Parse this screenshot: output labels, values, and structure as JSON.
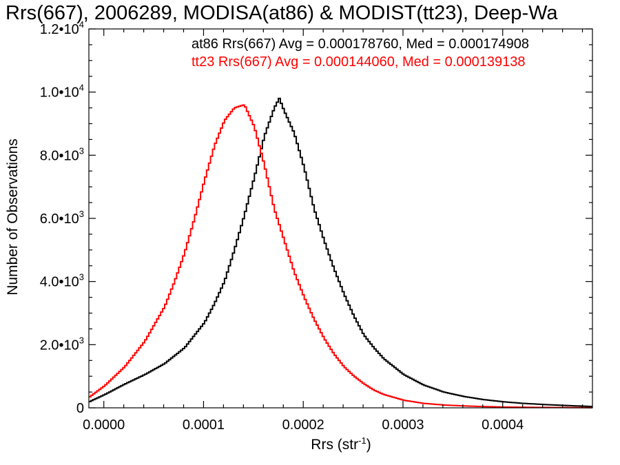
{
  "chart_data": {
    "type": "line",
    "title": "Rrs(667), 2006289, MODISA(at86) & MODIST(tt23), Deep-Wa",
    "xlabel": "Rrs (str",
    "xlabel_sup": "-1",
    "xlabel_end": ")",
    "ylabel": "Number of Observations",
    "xlim": [
      -1.5e-05,
      0.00049
    ],
    "ylim": [
      0,
      12000
    ],
    "x_ticks": [
      {
        "value": 0.0,
        "label": "0.0000"
      },
      {
        "value": 0.0001,
        "label": "0.0001"
      },
      {
        "value": 0.0002,
        "label": "0.0002"
      },
      {
        "value": 0.0003,
        "label": "0.0003"
      },
      {
        "value": 0.0004,
        "label": "0.0004"
      }
    ],
    "y_ticks": [
      {
        "value": 0,
        "mant": "0",
        "exp": ""
      },
      {
        "value": 2000,
        "mant": "2.0•10",
        "exp": "3"
      },
      {
        "value": 4000,
        "mant": "4.0•10",
        "exp": "3"
      },
      {
        "value": 6000,
        "mant": "6.0•10",
        "exp": "3"
      },
      {
        "value": 8000,
        "mant": "8.0•10",
        "exp": "3"
      },
      {
        "value": 10000,
        "mant": "1.0•10",
        "exp": "4"
      },
      {
        "value": 12000,
        "mant": "1.2•10",
        "exp": "4"
      }
    ],
    "annotations": [
      {
        "text": "at86 Rrs(667) Avg = 0.000178760, Med = 0.000174908",
        "color": "#000000"
      },
      {
        "text": "tt23 Rrs(667) Avg = 0.000144060, Med = 0.000139138",
        "color": "#ff0000"
      }
    ],
    "series": [
      {
        "color": "#000000",
        "x": [
          -1.5e-05,
          0.0,
          2e-05,
          4e-05,
          6e-05,
          8e-05,
          0.0001,
          0.00011,
          0.00012,
          0.00013,
          0.00014,
          0.00015,
          0.00016,
          0.00017,
          0.000175,
          0.00018,
          0.00019,
          0.0002,
          0.00021,
          0.00022,
          0.00023,
          0.00024,
          0.00025,
          0.00026,
          0.00027,
          0.00028,
          0.0003,
          0.00032,
          0.00034,
          0.00036,
          0.00038,
          0.0004,
          0.00042,
          0.00045,
          0.00049
        ],
        "y": [
          200,
          420,
          750,
          1050,
          1400,
          1900,
          2700,
          3300,
          4000,
          5000,
          6100,
          7300,
          8600,
          9500,
          9800,
          9400,
          8700,
          7600,
          6300,
          5300,
          4400,
          3600,
          2900,
          2300,
          1900,
          1550,
          1050,
          720,
          500,
          360,
          260,
          190,
          140,
          90,
          40
        ]
      },
      {
        "color": "#ff0000",
        "x": [
          -1.5e-05,
          0.0,
          2e-05,
          4e-05,
          6e-05,
          7e-05,
          8e-05,
          9e-05,
          0.0001,
          0.00011,
          0.00012,
          0.00013,
          0.00014,
          0.00015,
          0.00016,
          0.00017,
          0.00018,
          0.00019,
          0.0002,
          0.00021,
          0.00022,
          0.00023,
          0.00024,
          0.00025,
          0.00026,
          0.00027,
          0.00028,
          0.0003,
          0.00032,
          0.00034,
          0.00036,
          0.00038,
          0.0004,
          0.00043,
          0.00049
        ],
        "y": [
          350,
          700,
          1300,
          2100,
          3200,
          4000,
          4900,
          6000,
          7200,
          8300,
          9100,
          9500,
          9600,
          8900,
          7700,
          6300,
          5300,
          4300,
          3500,
          2800,
          2200,
          1700,
          1300,
          1000,
          760,
          560,
          420,
          240,
          140,
          90,
          60,
          40,
          25,
          15,
          5
        ]
      }
    ]
  }
}
